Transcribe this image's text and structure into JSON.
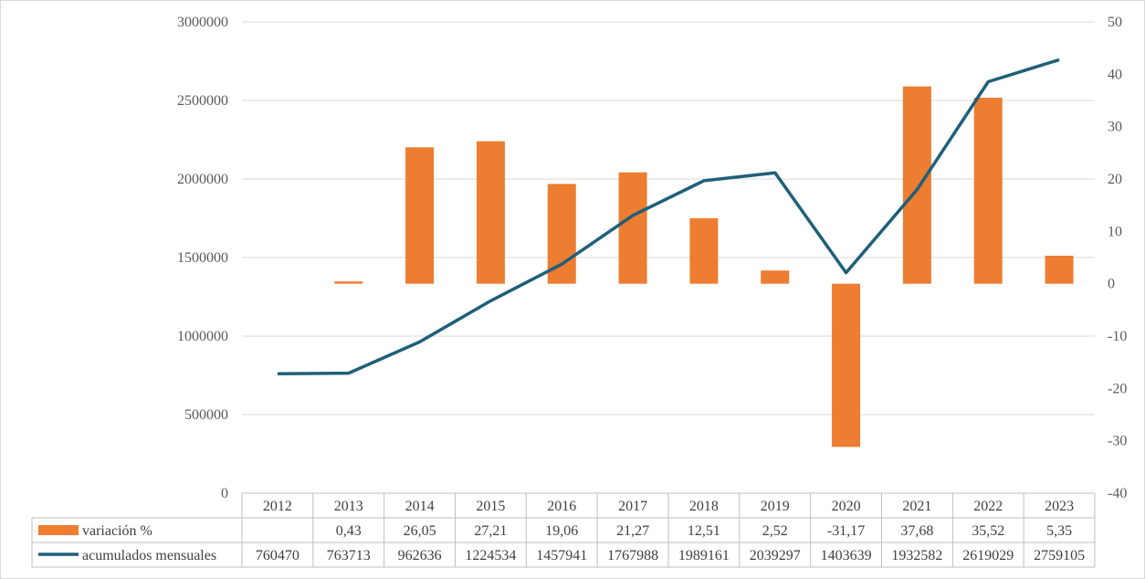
{
  "chart_data": {
    "type": "bar",
    "categories": [
      "2012",
      "2013",
      "2014",
      "2015",
      "2016",
      "2017",
      "2018",
      "2019",
      "2020",
      "2021",
      "2022",
      "2023"
    ],
    "series": [
      {
        "name": "variación %",
        "type": "bar",
        "axis": "right",
        "color": "#ED7D31",
        "values": [
          null,
          0.43,
          26.05,
          27.21,
          19.06,
          21.27,
          12.51,
          2.52,
          -31.17,
          37.68,
          35.52,
          5.35
        ],
        "labels": [
          "",
          "0,43",
          "26,05",
          "27,21",
          "19,06",
          "21,27",
          "12,51",
          "2,52",
          "-31,17",
          "37,68",
          "35,52",
          "5,35"
        ]
      },
      {
        "name": "acumulados mensuales",
        "type": "line",
        "axis": "left",
        "color": "#1F5F7A",
        "values": [
          760470,
          763713,
          962636,
          1224534,
          1457941,
          1767988,
          1989161,
          2039297,
          1403639,
          1932582,
          2619029,
          2759105
        ],
        "labels": [
          "760470",
          "763713",
          "962636",
          "1224534",
          "1457941",
          "1767988",
          "1989161",
          "2039297",
          "1403639",
          "1932582",
          "2619029",
          "2759105"
        ]
      }
    ],
    "y_left": {
      "min": 0,
      "max": 3000000,
      "ticks": [
        "0",
        "500000",
        "1000000",
        "1500000",
        "2000000",
        "2500000",
        "3000000"
      ]
    },
    "y_right": {
      "min": -40,
      "max": 50,
      "ticks": [
        "-40",
        "-30",
        "-20",
        "-10",
        "0",
        "10",
        "20",
        "30",
        "40",
        "50"
      ]
    },
    "grid": true,
    "legend": "data-table-bottom"
  }
}
